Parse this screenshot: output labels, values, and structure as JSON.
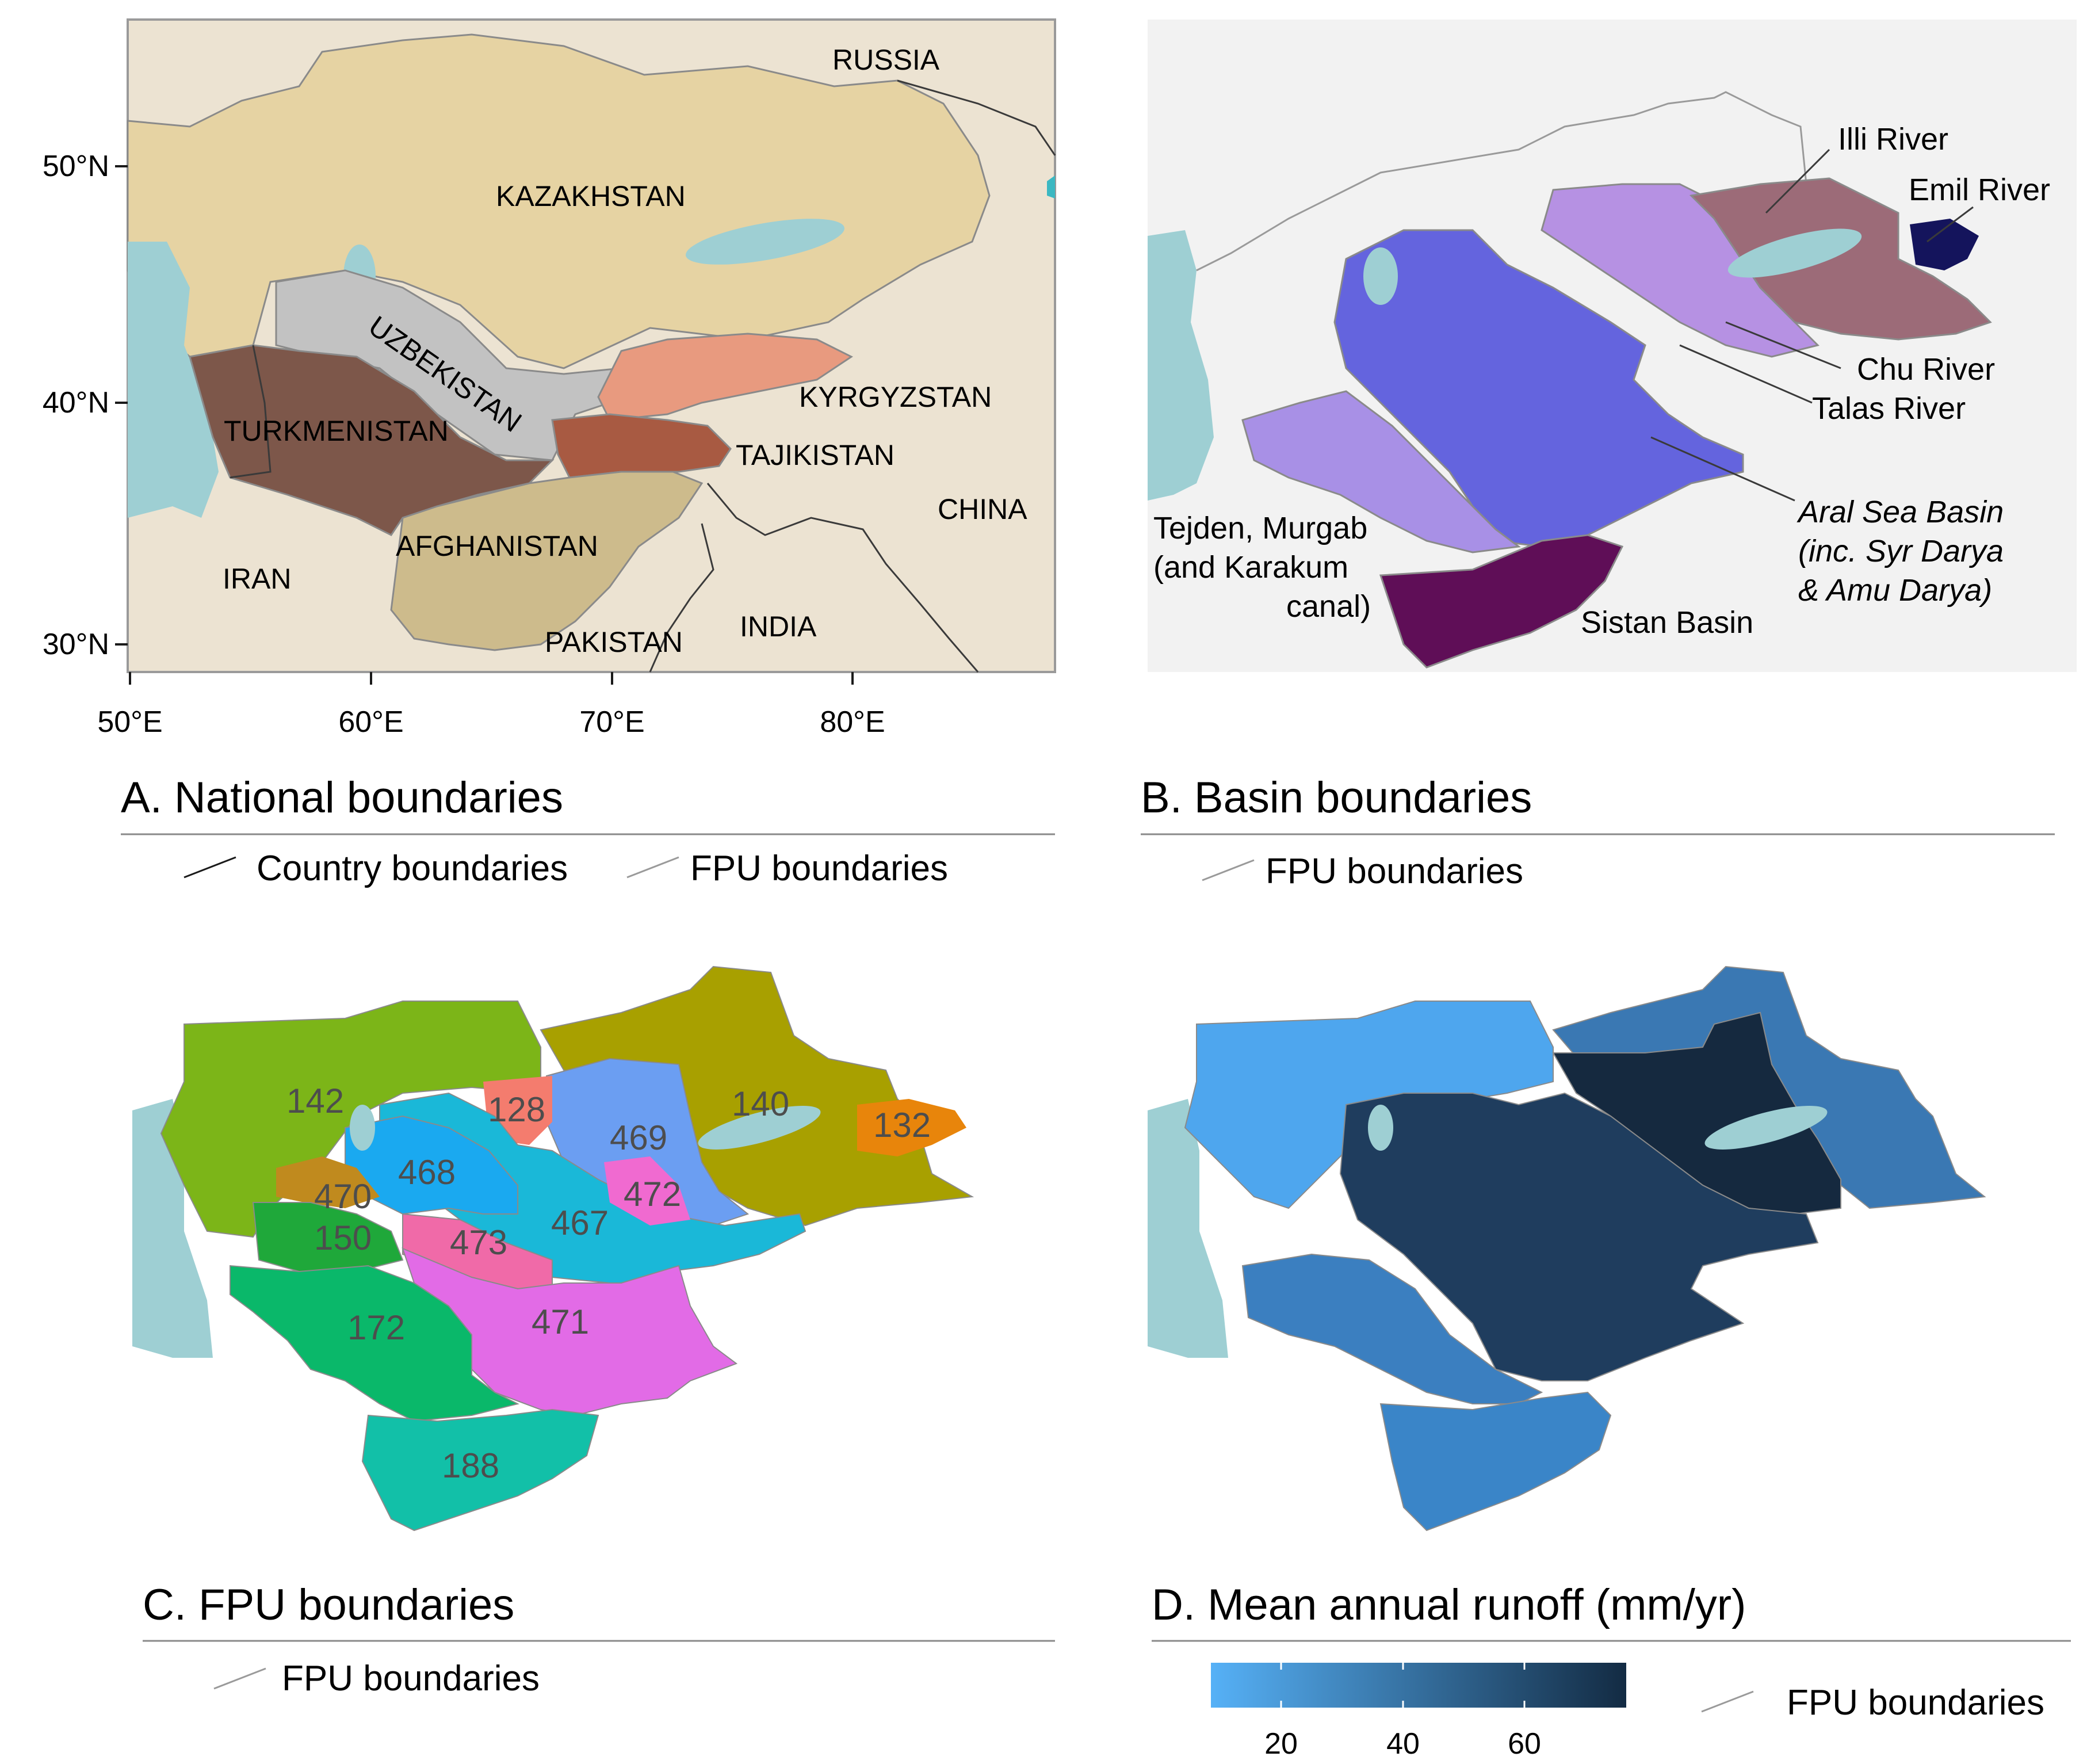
{
  "panels": {
    "a": {
      "title": "A. National boundaries",
      "legend": [
        "Country boundaries",
        "FPU boundaries"
      ],
      "y_ticks": [
        "50°N",
        "40°N",
        "30°N"
      ],
      "x_ticks": [
        "50°E",
        "60°E",
        "70°E",
        "80°E"
      ],
      "countries": {
        "russia": "RUSSIA",
        "kazakhstan": "KAZAKHSTAN",
        "uzbekistan": "UZBEKISTAN",
        "kyrgyzstan": "KYRGYZSTAN",
        "turkmenistan": "TURKMENISTAN",
        "tajikistan": "TAJIKISTAN",
        "china": "CHINA",
        "afghanistan": "AFGHANISTAN",
        "iran": "IRAN",
        "pakistan": "PAKISTAN",
        "india": "INDIA"
      }
    },
    "b": {
      "title": "B. Basin boundaries",
      "legend": [
        "FPU boundaries"
      ],
      "basins": {
        "illi": "Illi River",
        "emil": "Emil River",
        "chu": "Chu River",
        "talas": "Talas River",
        "aral_1": "Aral Sea Basin",
        "aral_2": "(inc. Syr Darya",
        "aral_3": "& Amu Darya)",
        "tejden_1": "Tejden, Murgab",
        "tejden_2": "(and Karakum",
        "tejden_3": "canal)",
        "sistan": "Sistan Basin"
      },
      "colors": {
        "illi": "#9c6b78",
        "emil": "#14145c",
        "chu_talas": "#b691e3",
        "aral": "#6464de",
        "tejden": "#a890e6",
        "sistan": "#5f0e57"
      }
    },
    "c": {
      "title": "C. FPU boundaries",
      "legend": [
        "FPU boundaries"
      ],
      "fpus": [
        "142",
        "128",
        "140",
        "132",
        "469",
        "468",
        "470",
        "472",
        "467",
        "150",
        "473",
        "471",
        "172",
        "188"
      ],
      "colors": {
        "142": "#7cb518",
        "128": "#f47c6e",
        "140": "#a8a000",
        "132": "#e8850b",
        "469": "#6b9ef2",
        "468": "#1aa9f0",
        "467": "#1ab8d8",
        "470": "#c08a1e",
        "472": "#f06ad0",
        "150": "#1fa83a",
        "473": "#f06aa8",
        "471": "#e26be6",
        "172": "#0ab86a",
        "188": "#12c0a8"
      }
    },
    "d": {
      "title": "D. Mean annual runoff (mm/yr)",
      "legend": [
        "FPU boundaries"
      ],
      "colorbar_ticks": [
        "20",
        "40",
        "60"
      ],
      "colorbar_colors": [
        "#56b1f7",
        "#132b43"
      ]
    }
  }
}
